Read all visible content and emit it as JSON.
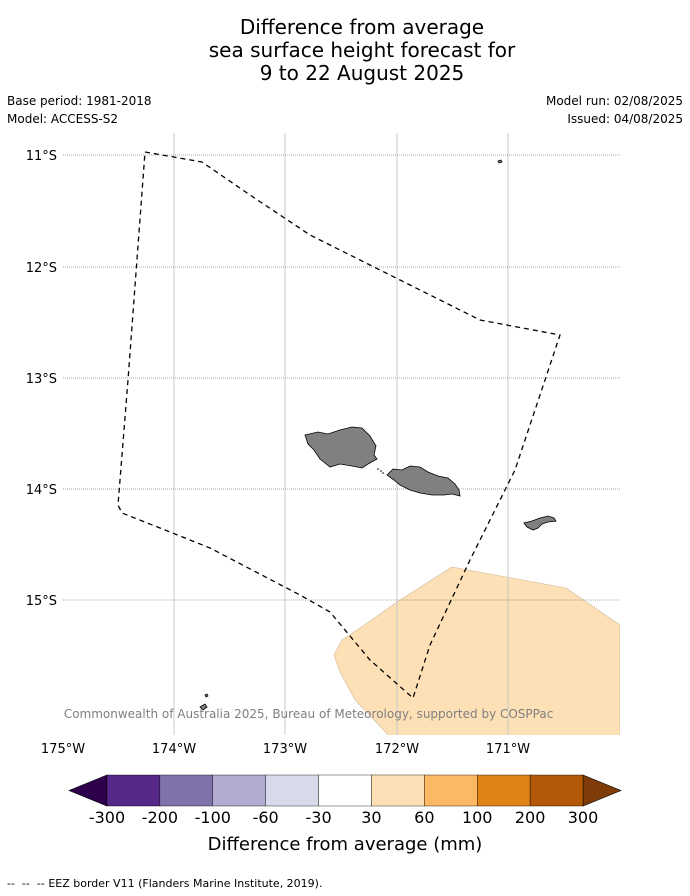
{
  "title": {
    "line1": "Difference from average",
    "line2": "sea surface height forecast for",
    "line3": "9 to 22 August 2025"
  },
  "meta": {
    "base_period": "Base period: 1981-2018",
    "model": "Model: ACCESS-S2",
    "model_run": "Model run: 02/08/2025",
    "issued": "Issued: 04/08/2025"
  },
  "map": {
    "lon_labels": [
      "175°W",
      "174°W",
      "173°W",
      "172°W",
      "171°W"
    ],
    "lat_labels": [
      "11°S",
      "12°S",
      "13°S",
      "14°S",
      "15°S"
    ],
    "land_color": "#808080",
    "anomaly_area_color": "#fde0b6",
    "anomaly_area_category": "30 to 60",
    "copyright": "© Commonwealth of Australia 2025, Bureau of Meteorology, supported by COSPPac"
  },
  "colorbar": {
    "title": "Difference from average (mm)",
    "tick_labels": [
      "-300",
      "-200",
      "-100",
      "-60",
      "-30",
      "30",
      "60",
      "100",
      "200",
      "300"
    ],
    "under_color": "#2d004b",
    "over_color": "#7f3b08",
    "bin_colors": [
      "#542788",
      "#8073ac",
      "#b2abd2",
      "#d8daeb",
      "#ffffff",
      "#fee0b6",
      "#fdb863",
      "#e08214",
      "#b35806"
    ]
  },
  "footer": {
    "legend_symbol": "--  --  --",
    "legend_text": "EEZ border V11 (Flanders Marine Institute, 2019)."
  }
}
